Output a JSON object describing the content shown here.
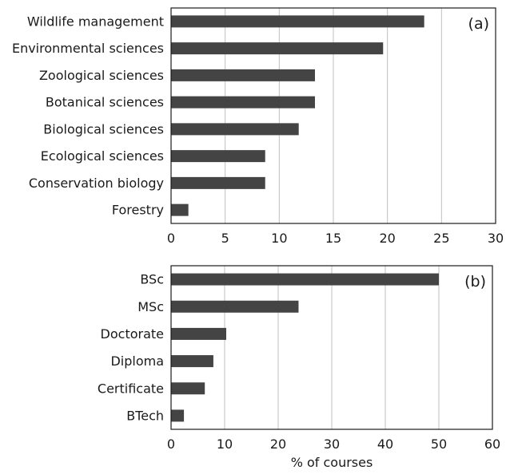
{
  "chart_data": [
    {
      "type": "bar",
      "orientation": "horizontal",
      "panel_label": "(a)",
      "categories": [
        "Wildlife management",
        "Environmental sciences",
        "Zoological sciences",
        "Botanical sciences",
        "Biological sciences",
        "Ecological sciences",
        "Conservation biology",
        "Forestry"
      ],
      "values": [
        23.4,
        19.6,
        13.3,
        13.3,
        11.8,
        8.7,
        8.7,
        1.6
      ],
      "xlim": [
        0,
        30
      ],
      "xticks": [
        "0",
        "5",
        "10",
        "15",
        "20",
        "25",
        "30"
      ],
      "xlabel": "",
      "grid": true,
      "bar_color": "#444444"
    },
    {
      "type": "bar",
      "orientation": "horizontal",
      "panel_label": "(b)",
      "categories": [
        "BSc",
        "MSc",
        "Doctorate",
        "Diploma",
        "Certificate",
        "BTech"
      ],
      "values": [
        50.0,
        23.8,
        10.3,
        7.9,
        6.3,
        2.4
      ],
      "xlim": [
        0,
        60
      ],
      "xticks": [
        "0",
        "10",
        "20",
        "30",
        "40",
        "50",
        "60"
      ],
      "xlabel": "% of courses",
      "grid": true,
      "bar_color": "#444444"
    }
  ]
}
